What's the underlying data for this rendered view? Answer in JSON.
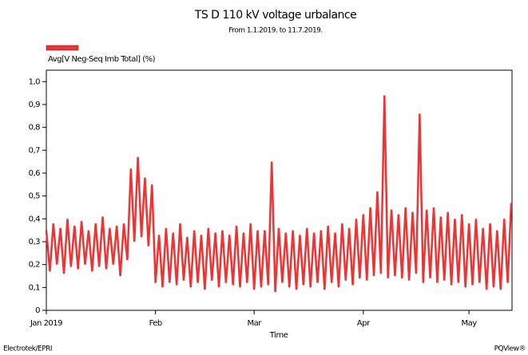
{
  "chart_data": {
    "type": "line",
    "title": "TS D 110 kV voltage urbalance",
    "subtitle": "From 1.1.2019. to 11.7.2019.",
    "xlabel": "Time",
    "footer_left": "Electrotek/EPRI",
    "footer_right": "PQView®",
    "legend": "top-left",
    "categories": [
      "Jan 2019",
      null,
      null,
      null,
      null,
      null,
      null,
      null,
      null,
      null,
      null,
      null,
      null,
      null,
      null,
      null,
      null,
      null,
      null,
      null,
      null,
      null,
      null,
      null,
      null,
      null,
      null,
      null,
      null,
      null,
      null,
      "Feb",
      null,
      null,
      null,
      null,
      null,
      null,
      null,
      null,
      null,
      null,
      null,
      null,
      null,
      null,
      null,
      null,
      null,
      null,
      null,
      null,
      null,
      null,
      null,
      null,
      null,
      null,
      null,
      "Mar",
      null,
      null,
      null,
      null,
      null,
      null,
      null,
      null,
      null,
      null,
      null,
      null,
      null,
      null,
      null,
      null,
      null,
      null,
      null,
      null,
      null,
      null,
      null,
      null,
      null,
      null,
      null,
      null,
      null,
      null,
      "Apr",
      null,
      null,
      null,
      null,
      null,
      null,
      null,
      null,
      null,
      null,
      null,
      null,
      null,
      null,
      null,
      null,
      null,
      null,
      null,
      null,
      null,
      null,
      null,
      null,
      null,
      null,
      null,
      null,
      null,
      "May",
      null,
      null,
      null,
      null,
      null,
      null,
      null,
      null,
      null,
      null,
      null,
      null
    ],
    "series": [
      {
        "name": "Avg[V Neg-Seq Imb Total] (%)",
        "color": "#ee3333",
        "values": [
          0.35,
          0.17,
          0.38,
          0.2,
          0.36,
          0.16,
          0.4,
          0.19,
          0.37,
          0.18,
          0.39,
          0.2,
          0.35,
          0.17,
          0.38,
          0.19,
          0.41,
          0.18,
          0.36,
          0.2,
          0.37,
          0.15,
          0.38,
          0.22,
          0.62,
          0.3,
          0.67,
          0.32,
          0.58,
          0.28,
          0.55,
          0.12,
          0.33,
          0.1,
          0.36,
          0.12,
          0.34,
          0.11,
          0.38,
          0.13,
          0.32,
          0.1,
          0.35,
          0.12,
          0.33,
          0.09,
          0.36,
          0.13,
          0.34,
          0.1,
          0.35,
          0.12,
          0.33,
          0.11,
          0.37,
          0.1,
          0.34,
          0.12,
          0.38,
          0.09,
          0.35,
          0.1,
          0.35,
          0.11,
          0.65,
          0.08,
          0.36,
          0.12,
          0.34,
          0.1,
          0.35,
          0.09,
          0.33,
          0.11,
          0.36,
          0.1,
          0.34,
          0.12,
          0.35,
          0.09,
          0.37,
          0.12,
          0.34,
          0.1,
          0.38,
          0.13,
          0.36,
          0.11,
          0.4,
          0.14,
          0.42,
          0.13,
          0.45,
          0.15,
          0.52,
          0.16,
          0.94,
          0.14,
          0.44,
          0.15,
          0.42,
          0.14,
          0.45,
          0.13,
          0.43,
          0.16,
          0.86,
          0.12,
          0.44,
          0.14,
          0.45,
          0.12,
          0.41,
          0.13,
          0.43,
          0.11,
          0.4,
          0.12,
          0.42,
          0.1,
          0.38,
          0.11,
          0.4,
          0.12,
          0.36,
          0.09,
          0.38,
          0.1,
          0.35,
          0.09,
          0.4,
          0.12,
          0.47
        ]
      }
    ],
    "ylim": [
      0,
      1.05
    ],
    "yticks": [
      0,
      {
        "value": 0.1,
        "label": "0,1"
      },
      {
        "value": 0.2,
        "label": "0,2"
      },
      {
        "value": 0.3,
        "label": "0,3"
      },
      {
        "value": 0.4,
        "label": "0,4"
      },
      {
        "value": 0.5,
        "label": "0,5"
      },
      {
        "value": 0.6,
        "label": "0,6"
      },
      {
        "value": 0.7,
        "label": "0,7"
      },
      {
        "value": 0.8,
        "label": "0,8"
      },
      {
        "value": 0.9,
        "label": "0,9"
      },
      {
        "value": 1.0,
        "label": "1,0"
      }
    ],
    "grid": false
  }
}
